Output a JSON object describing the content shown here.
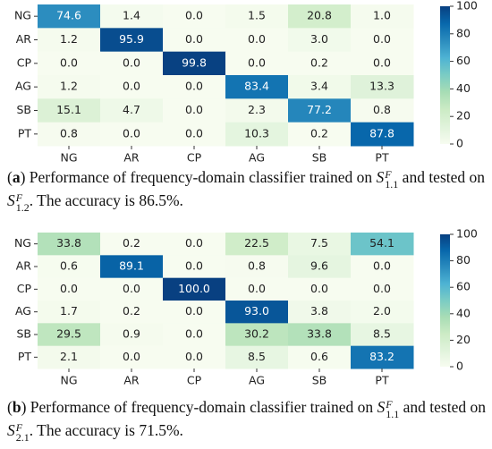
{
  "chart_data": [
    {
      "type": "heatmap",
      "x_categories": [
        "NG",
        "AR",
        "CP",
        "AG",
        "SB",
        "PT"
      ],
      "y_categories": [
        "NG",
        "AR",
        "CP",
        "AG",
        "SB",
        "PT"
      ],
      "values": [
        [
          74.6,
          1.4,
          0.0,
          1.5,
          20.8,
          1.0
        ],
        [
          1.2,
          95.9,
          0.0,
          0.0,
          3.0,
          0.0
        ],
        [
          0.0,
          0.0,
          99.8,
          0.0,
          0.2,
          0.0
        ],
        [
          1.2,
          0.0,
          0.0,
          83.4,
          3.4,
          13.3
        ],
        [
          15.1,
          4.7,
          0.0,
          2.3,
          77.2,
          0.8
        ],
        [
          0.8,
          0.0,
          0.0,
          10.3,
          0.2,
          87.8
        ]
      ],
      "value_labels": [
        [
          "74.6",
          "1.4",
          "0.0",
          "1.5",
          "20.8",
          "1.0"
        ],
        [
          "1.2",
          "95.9",
          "0.0",
          "0.0",
          "3.0",
          "0.0"
        ],
        [
          "0.0",
          "0.0",
          "99.8",
          "0.0",
          "0.2",
          "0.0"
        ],
        [
          "1.2",
          "0.0",
          "0.0",
          "83.4",
          "3.4",
          "13.3"
        ],
        [
          "15.1",
          "4.7",
          "0.0",
          "2.3",
          "77.2",
          "0.8"
        ],
        [
          "0.8",
          "0.0",
          "0.0",
          "10.3",
          "0.2",
          "87.8"
        ]
      ],
      "zlim": [
        0,
        100
      ],
      "zticks": [
        0,
        20,
        40,
        60,
        80,
        100
      ],
      "colorscale": [
        "#f7fcf0",
        "#e0f3db",
        "#ccebc5",
        "#a8ddb5",
        "#7bccc4",
        "#4eb3d3",
        "#2b8cbe",
        "#0868ac",
        "#084081"
      ],
      "caption": [
        {
          "text": "(",
          "style": "normal"
        },
        {
          "text": "a",
          "style": "bold"
        },
        {
          "text": ") Performance of frequency-domain classifier trained on ",
          "style": "normal"
        },
        {
          "base": "S",
          "sup": "F",
          "sub": "1.1"
        },
        {
          "text": " and tested on ",
          "style": "normal"
        },
        {
          "base": "S",
          "sup": "F",
          "sub": "1.2"
        },
        {
          "text": ". The accuracy is 86.5%.",
          "style": "normal"
        }
      ]
    },
    {
      "type": "heatmap",
      "x_categories": [
        "NG",
        "AR",
        "CP",
        "AG",
        "SB",
        "PT"
      ],
      "y_categories": [
        "NG",
        "AR",
        "CP",
        "AG",
        "SB",
        "PT"
      ],
      "values": [
        [
          33.8,
          0.2,
          0.0,
          22.5,
          7.5,
          54.1
        ],
        [
          0.6,
          89.1,
          0.0,
          0.8,
          9.6,
          0.0
        ],
        [
          0.0,
          0.0,
          100.0,
          0.0,
          0.0,
          0.0
        ],
        [
          1.7,
          0.2,
          0.0,
          93.0,
          3.8,
          2.0
        ],
        [
          29.5,
          0.9,
          0.0,
          30.2,
          33.8,
          8.5
        ],
        [
          2.1,
          0.0,
          0.0,
          8.5,
          0.6,
          83.2
        ]
      ],
      "value_labels": [
        [
          "33.8",
          "0.2",
          "0.0",
          "22.5",
          "7.5",
          "54.1"
        ],
        [
          "0.6",
          "89.1",
          "0.0",
          "0.8",
          "9.6",
          "0.0"
        ],
        [
          "0.0",
          "0.0",
          "100.0",
          "0.0",
          "0.0",
          "0.0"
        ],
        [
          "1.7",
          "0.2",
          "0.0",
          "93.0",
          "3.8",
          "2.0"
        ],
        [
          "29.5",
          "0.9",
          "0.0",
          "30.2",
          "33.8",
          "8.5"
        ],
        [
          "2.1",
          "0.0",
          "0.0",
          "8.5",
          "0.6",
          "83.2"
        ]
      ],
      "zlim": [
        0,
        100
      ],
      "zticks": [
        0,
        20,
        40,
        60,
        80,
        100
      ],
      "colorscale": [
        "#f7fcf0",
        "#e0f3db",
        "#ccebc5",
        "#a8ddb5",
        "#7bccc4",
        "#4eb3d3",
        "#2b8cbe",
        "#0868ac",
        "#084081"
      ],
      "caption": [
        {
          "text": "(",
          "style": "normal"
        },
        {
          "text": "b",
          "style": "bold"
        },
        {
          "text": ") Performance of frequency-domain classifier trained on ",
          "style": "normal"
        },
        {
          "base": "S",
          "sup": "F",
          "sub": "1.1"
        },
        {
          "text": " and tested on ",
          "style": "normal"
        },
        {
          "base": "S",
          "sup": "F",
          "sub": "2.1"
        },
        {
          "text": ". The accuracy is 71.5%.",
          "style": "normal"
        }
      ]
    }
  ]
}
